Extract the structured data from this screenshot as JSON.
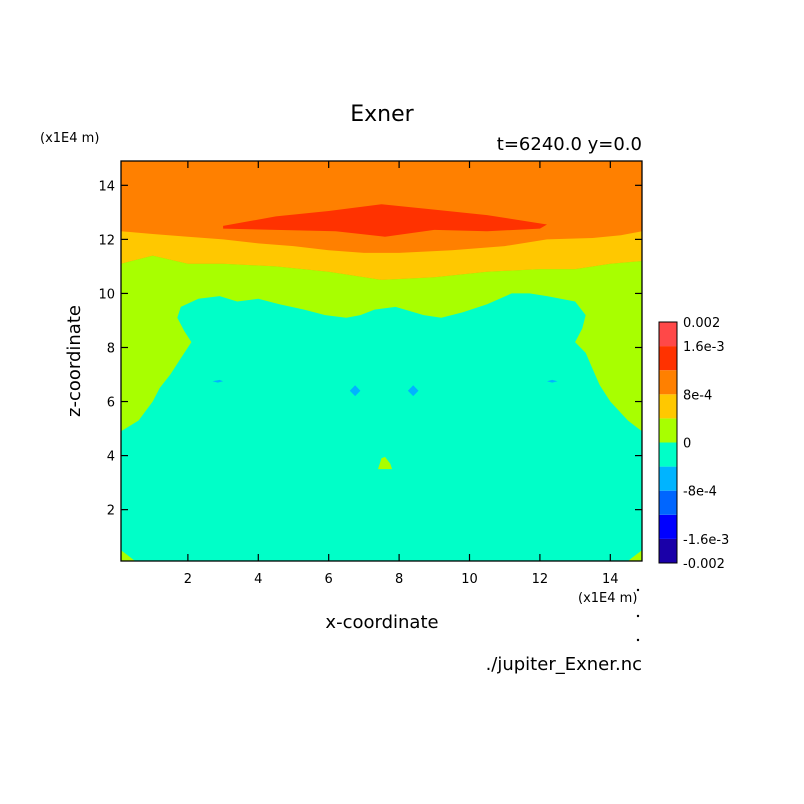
{
  "chart_data": {
    "type": "heatmap",
    "title": "Exner",
    "subtitle": "t=6240.0 y=0.0",
    "xlabel": "x-coordinate",
    "ylabel": "z-coordinate",
    "x_unit": "(x1E4 m)",
    "y_unit": "(x1E4 m)",
    "xlim": [
      0.1,
      14.9
    ],
    "ylim": [
      0.1,
      14.9
    ],
    "x_ticks": [
      2,
      4,
      6,
      8,
      10,
      12,
      14
    ],
    "y_ticks": [
      2,
      4,
      6,
      8,
      10,
      12,
      14
    ],
    "x_tick_labels": [
      "2",
      "4",
      "6",
      "8",
      "10",
      "12",
      "14"
    ],
    "y_tick_labels": [
      "2",
      "4",
      "6",
      "8",
      "10",
      "12",
      "14"
    ],
    "colorbar": {
      "levels": [
        -0.002,
        -0.0016,
        -0.0012,
        -0.0008,
        -0.0004,
        0,
        0.0004,
        0.0008,
        0.0012,
        0.0016,
        0.002
      ],
      "colors": [
        "#1a00a8",
        "#0000ff",
        "#0066ff",
        "#00b4ff",
        "#00ffc8",
        "#a8ff00",
        "#ffc800",
        "#ff8000",
        "#ff3200",
        "#ff4848"
      ],
      "labels": [
        {
          "value": 0.002,
          "text": "0.002"
        },
        {
          "value": 0.0016,
          "text": "1.6e-3"
        },
        {
          "value": 0.0008,
          "text": "8e-4"
        },
        {
          "value": 0,
          "text": "0"
        },
        {
          "value": -0.0008,
          "text": "-8e-4"
        },
        {
          "value": -0.0016,
          "text": "-1.6e-3"
        },
        {
          "value": -0.002,
          "text": "-0.002"
        }
      ]
    },
    "regions": [
      {
        "name": "band-1.2e-3-to-1.6e-3",
        "color": "#ff3200",
        "points": [
          [
            3.0,
            12.5
          ],
          [
            4.5,
            12.85
          ],
          [
            6.0,
            13.05
          ],
          [
            7.5,
            13.3
          ],
          [
            9.0,
            13.1
          ],
          [
            10.5,
            12.9
          ],
          [
            12.2,
            12.55
          ],
          [
            12.0,
            12.4
          ],
          [
            10.5,
            12.3
          ],
          [
            9.0,
            12.35
          ],
          [
            7.6,
            12.1
          ],
          [
            6.2,
            12.3
          ],
          [
            4.5,
            12.35
          ],
          [
            3.0,
            12.4
          ]
        ]
      },
      {
        "name": "band-4e-4-to-8e-4",
        "color": "#ffc800",
        "points": [
          [
            0.1,
            11.1
          ],
          [
            1.0,
            11.4
          ],
          [
            2.0,
            11.1
          ],
          [
            3.0,
            11.1
          ],
          [
            4.5,
            11.0
          ],
          [
            6.0,
            10.8
          ],
          [
            7.5,
            10.5
          ],
          [
            9.0,
            10.6
          ],
          [
            10.5,
            10.8
          ],
          [
            12.0,
            10.9
          ],
          [
            13.0,
            10.9
          ],
          [
            14.0,
            11.1
          ],
          [
            14.9,
            11.2
          ],
          [
            14.9,
            12.3
          ],
          [
            14.3,
            12.15
          ],
          [
            13.5,
            12.05
          ],
          [
            12.2,
            12.0
          ],
          [
            11.0,
            11.75
          ],
          [
            9.5,
            11.6
          ],
          [
            8.0,
            11.5
          ],
          [
            7.0,
            11.5
          ],
          [
            6.0,
            11.6
          ],
          [
            5.0,
            11.75
          ],
          [
            4.0,
            11.85
          ],
          [
            3.0,
            12.0
          ],
          [
            2.0,
            12.1
          ],
          [
            1.0,
            12.2
          ],
          [
            0.1,
            12.3
          ]
        ]
      },
      {
        "name": "band-0-to-4e-4",
        "color": "#a8ff00",
        "points": [
          [
            0.1,
            0.1
          ],
          [
            14.9,
            0.1
          ],
          [
            14.9,
            11.2
          ],
          [
            14.0,
            11.1
          ],
          [
            13.0,
            10.9
          ],
          [
            12.0,
            10.9
          ],
          [
            10.5,
            10.8
          ],
          [
            9.0,
            10.6
          ],
          [
            7.5,
            10.5
          ],
          [
            6.0,
            10.8
          ],
          [
            4.5,
            11.0
          ],
          [
            3.0,
            11.1
          ],
          [
            2.0,
            11.1
          ],
          [
            1.0,
            11.4
          ],
          [
            0.1,
            11.1
          ]
        ]
      },
      {
        "name": "band-minus-4e-4-to-0",
        "color": "#00ffc8",
        "points": [
          [
            0.1,
            0.5
          ],
          [
            0.5,
            0.1
          ],
          [
            14.5,
            0.1
          ],
          [
            14.9,
            0.5
          ],
          [
            14.9,
            4.9
          ],
          [
            14.5,
            5.3
          ],
          [
            14.0,
            6.0
          ],
          [
            13.7,
            6.6
          ],
          [
            13.5,
            7.2
          ],
          [
            13.3,
            7.8
          ],
          [
            13.0,
            8.2
          ],
          [
            13.2,
            8.7
          ],
          [
            13.3,
            9.2
          ],
          [
            13.0,
            9.7
          ],
          [
            12.2,
            9.9
          ],
          [
            11.7,
            10.0
          ],
          [
            11.2,
            10.0
          ],
          [
            10.5,
            9.6
          ],
          [
            9.8,
            9.3
          ],
          [
            9.2,
            9.1
          ],
          [
            8.7,
            9.2
          ],
          [
            7.9,
            9.5
          ],
          [
            7.3,
            9.4
          ],
          [
            6.9,
            9.2
          ],
          [
            6.5,
            9.1
          ],
          [
            5.9,
            9.2
          ],
          [
            5.3,
            9.4
          ],
          [
            4.6,
            9.6
          ],
          [
            4.0,
            9.8
          ],
          [
            3.4,
            9.7
          ],
          [
            2.9,
            9.9
          ],
          [
            2.3,
            9.8
          ],
          [
            1.8,
            9.5
          ],
          [
            1.7,
            9.1
          ],
          [
            1.9,
            8.6
          ],
          [
            2.1,
            8.2
          ],
          [
            1.8,
            7.6
          ],
          [
            1.5,
            7.0
          ],
          [
            1.2,
            6.5
          ],
          [
            1.0,
            6.0
          ],
          [
            0.6,
            5.3
          ],
          [
            0.1,
            4.9
          ]
        ]
      },
      {
        "name": "band-minus-8e-4-to-minus-4e-4-left",
        "color": "#00b4ff",
        "points": [
          [
            6.6,
            6.4
          ],
          [
            6.75,
            6.6
          ],
          [
            6.9,
            6.4
          ],
          [
            6.75,
            6.2
          ]
        ]
      },
      {
        "name": "band-minus-8e-4-to-minus-4e-4-right",
        "color": "#00b4ff",
        "points": [
          [
            8.25,
            6.4
          ],
          [
            8.4,
            6.6
          ],
          [
            8.55,
            6.4
          ],
          [
            8.4,
            6.2
          ]
        ]
      },
      {
        "name": "band-0-to-4e-4-spot",
        "color": "#a8ff00",
        "points": [
          [
            7.4,
            3.5
          ],
          [
            7.5,
            3.9
          ],
          [
            7.6,
            3.95
          ],
          [
            7.75,
            3.7
          ],
          [
            7.8,
            3.5
          ]
        ]
      },
      {
        "name": "band-minus-8e-4-to-minus-4e-4-dot-left",
        "color": "#00b4ff",
        "points": [
          [
            2.7,
            6.75
          ],
          [
            2.9,
            6.8
          ],
          [
            3.0,
            6.75
          ],
          [
            2.85,
            6.7
          ]
        ]
      },
      {
        "name": "band-minus-8e-4-to-minus-4e-4-dot-right",
        "color": "#00b4ff",
        "points": [
          [
            12.2,
            6.75
          ],
          [
            12.35,
            6.8
          ],
          [
            12.5,
            6.75
          ],
          [
            12.35,
            6.7
          ]
        ]
      }
    ],
    "background_band": {
      "name": "band-8e-4-to-1.2e-3",
      "color": "#ff8000"
    }
  },
  "footer": {
    "filename": "./jupiter_Exner.nc"
  }
}
